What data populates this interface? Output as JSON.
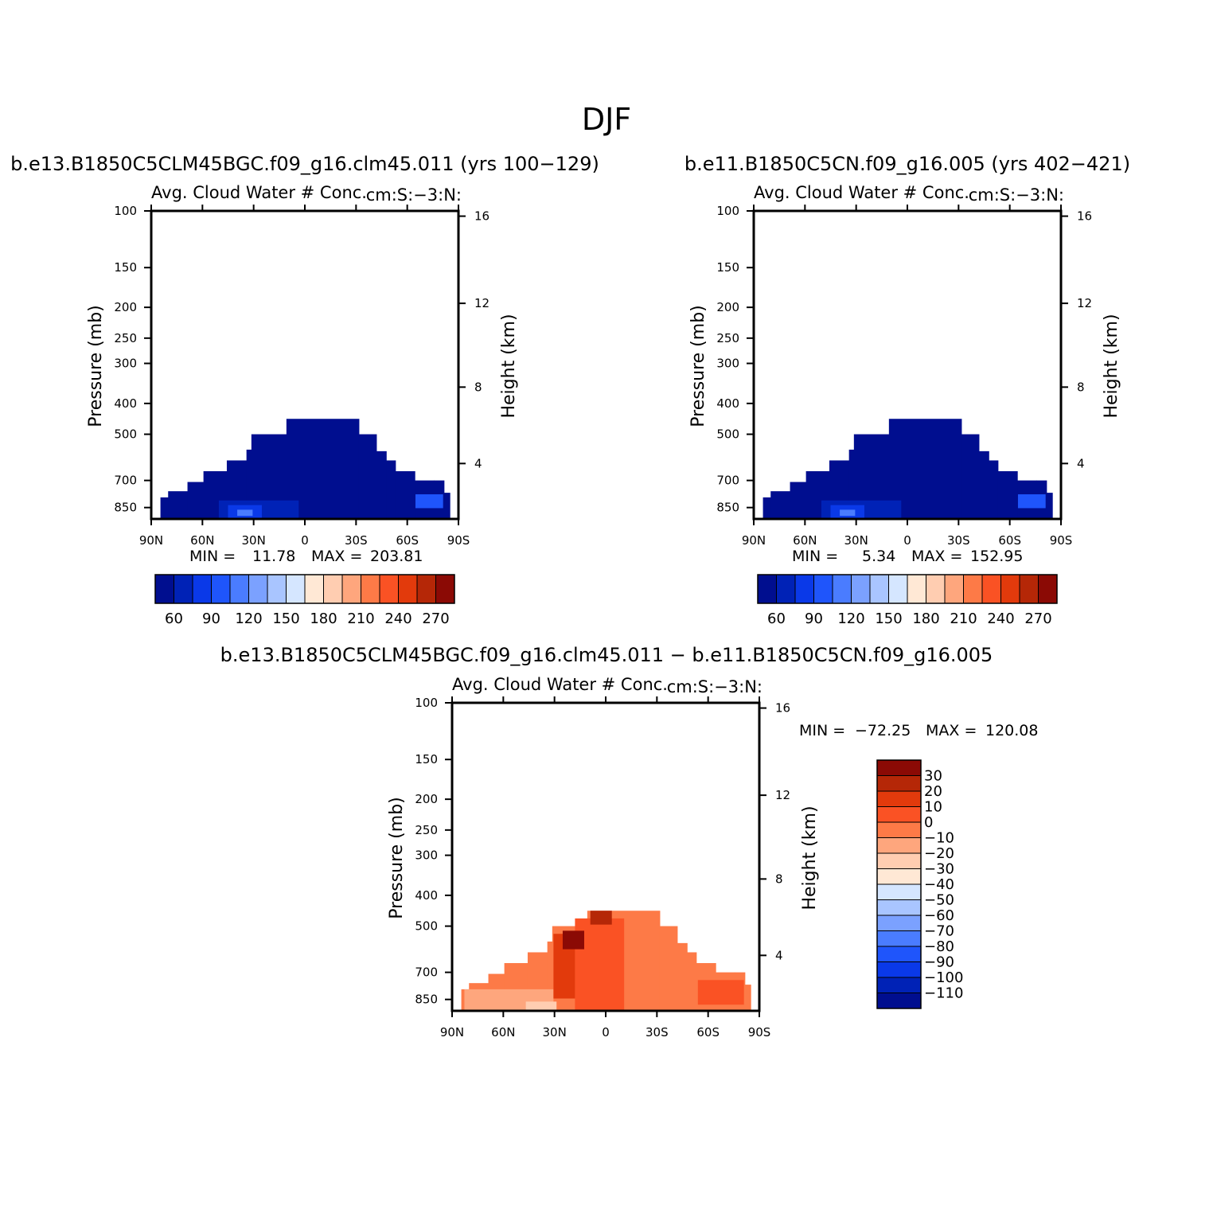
{
  "figure_title": "DJF",
  "colors": {
    "palette": [
      "#000e8f",
      "#0022b6",
      "#0a39e8",
      "#1f55fb",
      "#4a7cff",
      "#7ba1ff",
      "#a9c5ff",
      "#d5e6ff",
      "#ffe8d5",
      "#ffcdb1",
      "#fea67d",
      "#fd7a47",
      "#fa5224",
      "#e23a0c",
      "#b52707",
      "#8b0a05"
    ]
  },
  "panels": [
    {
      "title": "b.e13.B1850C5CLM45BGC.f09_g16.clm45.011 (yrs 100−129)",
      "left_string": "Avg. Cloud Water # Conc.",
      "right_string": "cm:S:−3:N:",
      "ylabel": "Pressure (mb)",
      "y2label": "Height (km)",
      "stats": {
        "min_label": "MIN =",
        "min": "11.78",
        "max_label": "MAX =",
        "max": "203.81"
      }
    },
    {
      "title": "b.e11.B1850C5CN.f09_g16.005 (yrs 402−421)",
      "left_string": "Avg. Cloud Water # Conc.",
      "right_string": "cm:S:−3:N:",
      "ylabel": "Pressure (mb)",
      "y2label": "Height (km)",
      "stats": {
        "min_label": "MIN =",
        "min": "5.34",
        "max_label": "MAX =",
        "max": "152.95"
      }
    },
    {
      "title": "b.e13.B1850C5CLM45BGC.f09_g16.clm45.011 − b.e11.B1850C5CN.f09_g16.005",
      "left_string": "Avg. Cloud Water # Conc.",
      "right_string": "cm:S:−3:N:",
      "ylabel": "Pressure (mb)",
      "y2label": "Height (km)",
      "stats": {
        "min_label": "MIN =",
        "min": "−72.25",
        "max_label": "MAX =",
        "max": "120.08"
      }
    }
  ],
  "chart_data": [
    {
      "type": "heatmap",
      "x_ticks": [
        "90N",
        "60N",
        "30N",
        "0",
        "30S",
        "60S",
        "90S"
      ],
      "y_ticks": [
        "100",
        "150",
        "200",
        "250",
        "300",
        "400",
        "500",
        "700",
        "850"
      ],
      "y_scale": "log (pressure)",
      "y2_ticks": [
        "16",
        "12",
        "8",
        "4"
      ],
      "colorbar_labels": [
        "60",
        "90",
        "120",
        "150",
        "180",
        "210",
        "240",
        "270"
      ],
      "colorbar_orientation": "horizontal",
      "data_range": [
        11.78,
        203.81
      ]
    },
    {
      "type": "heatmap",
      "x_ticks": [
        "90N",
        "60N",
        "30N",
        "0",
        "30S",
        "60S",
        "90S"
      ],
      "y_ticks": [
        "100",
        "150",
        "200",
        "250",
        "300",
        "400",
        "500",
        "700",
        "850"
      ],
      "y_scale": "log (pressure)",
      "y2_ticks": [
        "16",
        "12",
        "8",
        "4"
      ],
      "colorbar_labels": [
        "60",
        "90",
        "120",
        "150",
        "180",
        "210",
        "240",
        "270"
      ],
      "colorbar_orientation": "horizontal",
      "data_range": [
        5.34,
        152.95
      ]
    },
    {
      "type": "heatmap",
      "x_ticks": [
        "90N",
        "60N",
        "30N",
        "0",
        "30S",
        "60S",
        "90S"
      ],
      "y_ticks": [
        "100",
        "150",
        "200",
        "250",
        "300",
        "400",
        "500",
        "700",
        "850"
      ],
      "y_scale": "log (pressure)",
      "y2_ticks": [
        "16",
        "12",
        "8",
        "4"
      ],
      "colorbar_labels": [
        "30",
        "20",
        "10",
        "0",
        "−10",
        "−20",
        "−30",
        "−40",
        "−50",
        "−60",
        "−70",
        "−80",
        "−90",
        "−100",
        "−110"
      ],
      "colorbar_orientation": "vertical",
      "data_range": [
        -72.25,
        120.08
      ]
    }
  ]
}
